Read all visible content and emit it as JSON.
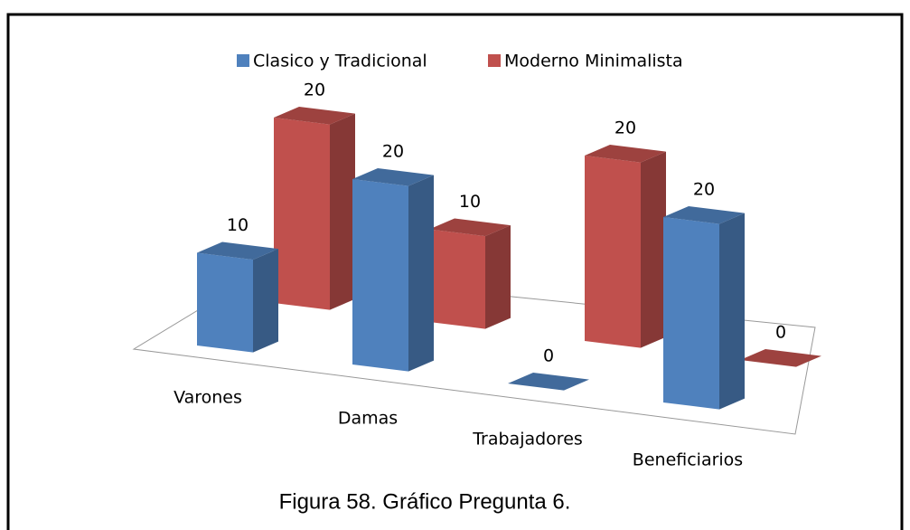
{
  "chart_data": {
    "type": "bar3d",
    "categories": [
      "Varones",
      "Damas",
      "Trabajadores",
      "Beneficiarios"
    ],
    "series": [
      {
        "name": "Clasico y Tradicional",
        "color": "#4F81BD",
        "values": [
          10,
          20,
          0,
          20
        ]
      },
      {
        "name": "Moderno Minimalista",
        "color": "#C0504D",
        "values": [
          20,
          10,
          20,
          0
        ]
      }
    ],
    "legend": "top",
    "caption": "Figura 58. Gráfico Pregunta  6."
  }
}
